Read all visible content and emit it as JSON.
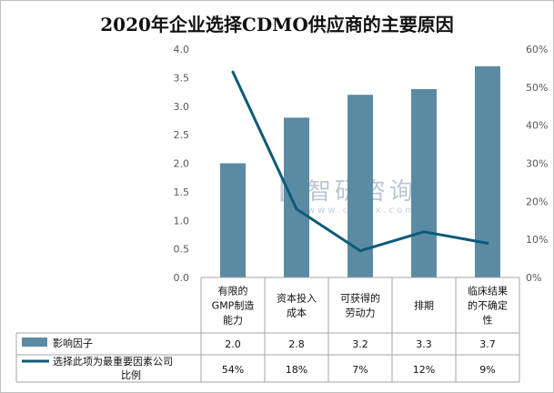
{
  "title": "2020年企业选择CDMO供应商的主要原因",
  "watermark": {
    "brand": "智研咨询",
    "url": "www.chyxx.com"
  },
  "colors": {
    "bar": "#5b8ba3",
    "line": "#0d5a78",
    "grid": "#d9d9d9",
    "axis": "#a6a6a6"
  },
  "chart_data": {
    "type": "bar",
    "categories": [
      "有限的GMP制造能力",
      "资本投入成本",
      "可获得的劳动力",
      "排期",
      "临床结果的不确定性"
    ],
    "category_lines": [
      [
        "有限的",
        "GMP制造",
        "能力"
      ],
      [
        "资本投入",
        "成本"
      ],
      [
        "可获得的",
        "劳动力"
      ],
      [
        "排期"
      ],
      [
        "临床结果",
        "的不确定",
        "性"
      ]
    ],
    "series": [
      {
        "name": "影响因子",
        "type": "bar",
        "axis": "left",
        "values": [
          2.0,
          2.8,
          3.2,
          3.3,
          3.7
        ],
        "labels": [
          "2.0",
          "2.8",
          "3.2",
          "3.3",
          "3.7"
        ]
      },
      {
        "name": "选择此项为最重要因素公司比例",
        "name_lines": [
          "选择此项为最重要因素公司",
          "比例"
        ],
        "type": "line",
        "axis": "right",
        "values": [
          54,
          18,
          7,
          12,
          9
        ],
        "labels": [
          "54%",
          "18%",
          "7%",
          "12%",
          "9%"
        ]
      }
    ],
    "y_left": {
      "min": 0,
      "max": 4.0,
      "ticks": [
        "0.0",
        "0.5",
        "1.0",
        "1.5",
        "2.0",
        "2.5",
        "3.0",
        "3.5",
        "4.0"
      ]
    },
    "y_right": {
      "min": 0,
      "max": 60,
      "ticks": [
        "0%",
        "10%",
        "20%",
        "30%",
        "40%",
        "50%",
        "60%"
      ]
    },
    "grid": false,
    "legend": "data-table"
  }
}
